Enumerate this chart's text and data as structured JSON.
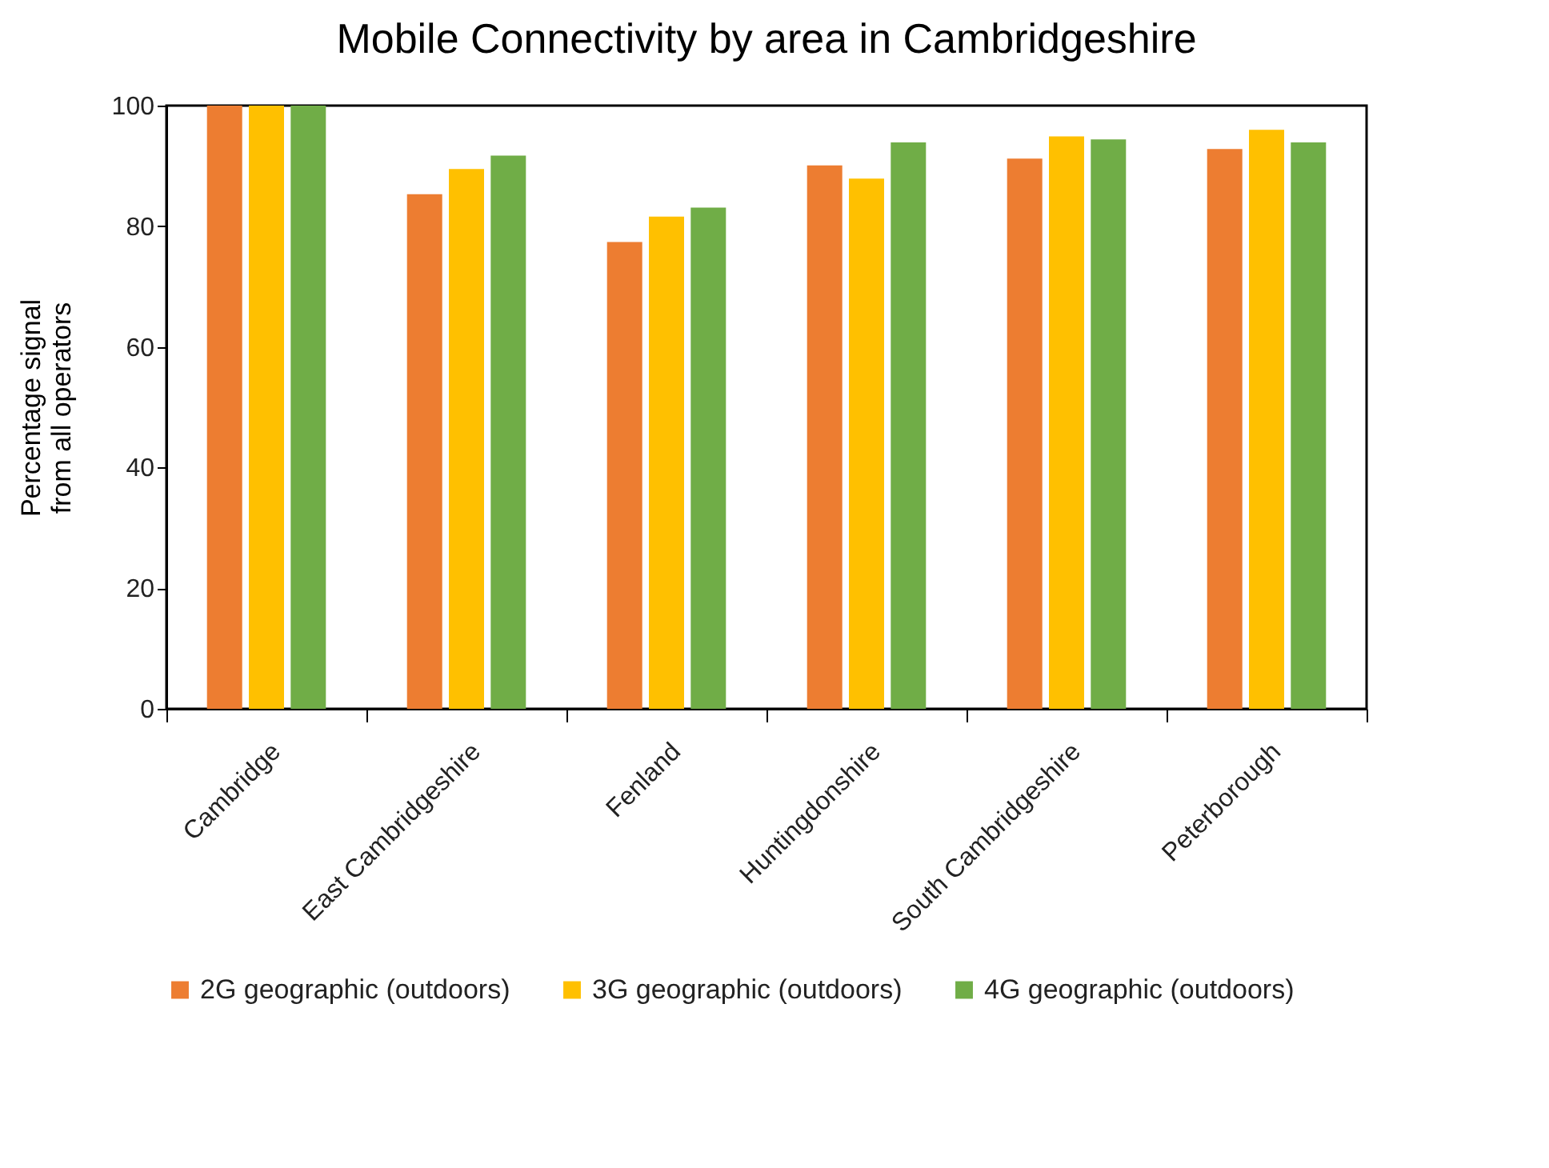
{
  "chart_data": {
    "type": "bar",
    "title": "Mobile Connectivity by area in Cambridgeshire",
    "ylabel": "Percentage  signal from all operators",
    "categories": [
      "Cambridge",
      "East Cambridgeshire",
      "Fenland",
      "Huntingdonshire",
      "South Cambridgeshire",
      "Peterborough"
    ],
    "series": [
      {
        "name": "2G geographic (outdoors)",
        "color": "#ed7d31",
        "values": [
          100,
          85.3,
          77.4,
          90.1,
          91.2,
          92.8
        ]
      },
      {
        "name": "3G geographic (outdoors)",
        "color": "#ffc000",
        "values": [
          100,
          89.5,
          81.6,
          87.9,
          94.9,
          96.0
        ]
      },
      {
        "name": "4G geographic (outdoors)",
        "color": "#70ad47",
        "values": [
          100,
          91.7,
          83.1,
          93.9,
          94.4,
          93.9
        ]
      }
    ],
    "ylim": [
      0,
      100
    ],
    "yticks": [
      0,
      20,
      40,
      60,
      80,
      100
    ],
    "grid": false,
    "legend": "bottom"
  }
}
